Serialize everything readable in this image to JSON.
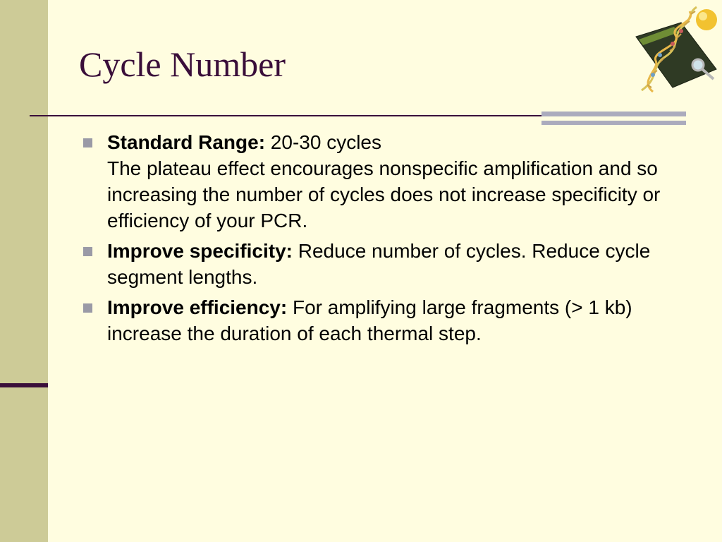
{
  "slide": {
    "title": "Cycle Number",
    "bullets": [
      {
        "label": "Standard Range:",
        "text": " 20-30 cycles",
        "extra": "The plateau effect encourages nonspecific amplification and so increasing the number of cycles does not increase specificity or efficiency of your PCR."
      },
      {
        "label": "Improve specificity:",
        "text": " Reduce number of cycles. Reduce cycle segment lengths."
      },
      {
        "label": "Improve efficiency:",
        "text": " For amplifying large fragments (> 1 kb) increase the duration of each thermal step."
      }
    ]
  },
  "logo": {
    "icon": "dna-helix-magnifier-icon"
  },
  "colors": {
    "background": "#FFFDE0",
    "side_band": "#CDCB97",
    "title": "#3A0E3A",
    "bullet_marker": "#9A9AA6",
    "accent_bars": "#ABABBD"
  }
}
